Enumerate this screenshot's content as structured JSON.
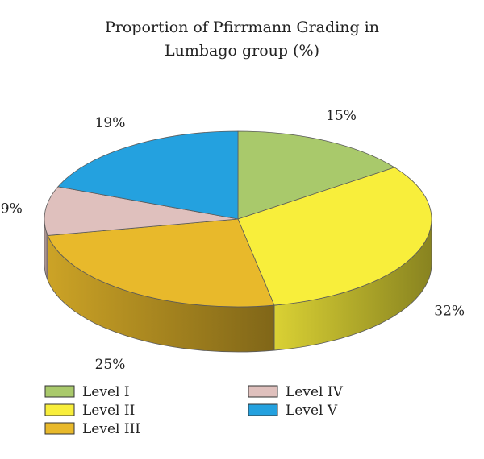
{
  "chart_data": {
    "type": "pie",
    "style": "3d",
    "title_lines": [
      "Proportion of Pfirrmann Grading in",
      "Lumbago group (%)"
    ],
    "categories": [
      "Level I",
      "Level II",
      "Level III",
      "Level IV",
      "Level V"
    ],
    "values": [
      15,
      32,
      25,
      9,
      19
    ],
    "value_labels": [
      "15%",
      "32%",
      "25%",
      "9%",
      "19%"
    ],
    "colors": [
      "#a9c96b",
      "#f8ee3b",
      "#e8b92b",
      "#dfc0bd",
      "#24a1df"
    ],
    "legend_placement": "bottom"
  }
}
